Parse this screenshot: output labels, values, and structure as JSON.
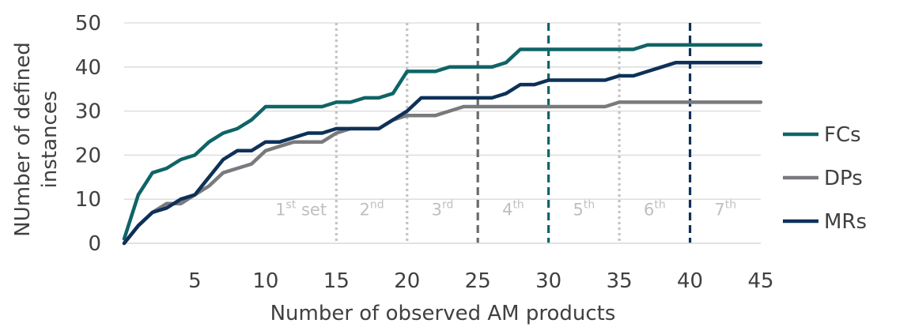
{
  "chart_data": {
    "type": "line",
    "xlabel": "Number of observed AM products",
    "ylabel": "NUmber of defined instances",
    "xlim": [
      0,
      45
    ],
    "ylim": [
      0,
      50
    ],
    "x_ticks": [
      5,
      10,
      15,
      20,
      25,
      30,
      35,
      40,
      45
    ],
    "y_ticks": [
      0,
      10,
      20,
      30,
      40,
      50
    ],
    "grid": "horizontal",
    "legend_position": "right",
    "x": [
      0,
      1,
      2,
      3,
      4,
      5,
      6,
      7,
      8,
      9,
      10,
      11,
      12,
      13,
      14,
      15,
      16,
      17,
      18,
      19,
      20,
      21,
      22,
      23,
      24,
      25,
      26,
      27,
      28,
      29,
      30,
      31,
      32,
      33,
      34,
      35,
      36,
      37,
      38,
      39,
      40,
      41,
      42,
      43,
      44,
      45
    ],
    "series": [
      {
        "name": "FCs",
        "color": "#0f6466",
        "values": [
          1,
          11,
          16,
          17,
          19,
          20,
          23,
          25,
          26,
          28,
          31,
          31,
          31,
          31,
          31,
          32,
          32,
          33,
          33,
          34,
          39,
          39,
          39,
          40,
          40,
          40,
          40,
          41,
          44,
          44,
          44,
          44,
          44,
          44,
          44,
          44,
          44,
          45,
          45,
          45,
          45,
          45,
          45,
          45,
          45,
          45
        ]
      },
      {
        "name": "DPs",
        "color": "#7a7a7e",
        "values": [
          0,
          4,
          7,
          9,
          9,
          11,
          13,
          16,
          17,
          18,
          21,
          22,
          23,
          23,
          23,
          25,
          26,
          26,
          26,
          28,
          29,
          29,
          29,
          30,
          31,
          31,
          31,
          31,
          31,
          31,
          31,
          31,
          31,
          31,
          31,
          32,
          32,
          32,
          32,
          32,
          32,
          32,
          32,
          32,
          32,
          32
        ]
      },
      {
        "name": "MRs",
        "color": "#0d3158",
        "values": [
          0,
          4,
          7,
          8,
          10,
          11,
          15,
          19,
          21,
          21,
          23,
          23,
          24,
          25,
          25,
          26,
          26,
          26,
          26,
          28,
          30,
          33,
          33,
          33,
          33,
          33,
          33,
          34,
          36,
          36,
          37,
          37,
          37,
          37,
          37,
          38,
          38,
          39,
          40,
          41,
          41,
          41,
          41,
          41,
          41,
          41
        ]
      }
    ],
    "dividers": [
      {
        "x": 15,
        "style": "dotted",
        "color": "#c4c4c4"
      },
      {
        "x": 20,
        "style": "dotted",
        "color": "#c4c4c4"
      },
      {
        "x": 25,
        "style": "dashed",
        "color": "#6b6b6f"
      },
      {
        "x": 30,
        "style": "dashed",
        "color": "#0f6466"
      },
      {
        "x": 35,
        "style": "dotted",
        "color": "#c4c4c4"
      },
      {
        "x": 40,
        "style": "dashed",
        "color": "#0d3158"
      }
    ],
    "set_labels": [
      {
        "x": 12.5,
        "num": "1",
        "sup": "st",
        "suffix": " set"
      },
      {
        "x": 17.5,
        "num": "2",
        "sup": "nd",
        "suffix": ""
      },
      {
        "x": 22.5,
        "num": "3",
        "sup": "rd",
        "suffix": ""
      },
      {
        "x": 27.5,
        "num": "4",
        "sup": "th",
        "suffix": ""
      },
      {
        "x": 32.5,
        "num": "5",
        "sup": "th",
        "suffix": ""
      },
      {
        "x": 37.5,
        "num": "6",
        "sup": "th",
        "suffix": ""
      },
      {
        "x": 42.5,
        "num": "7",
        "sup": "th",
        "suffix": ""
      }
    ],
    "set_label_y": 6.4
  }
}
